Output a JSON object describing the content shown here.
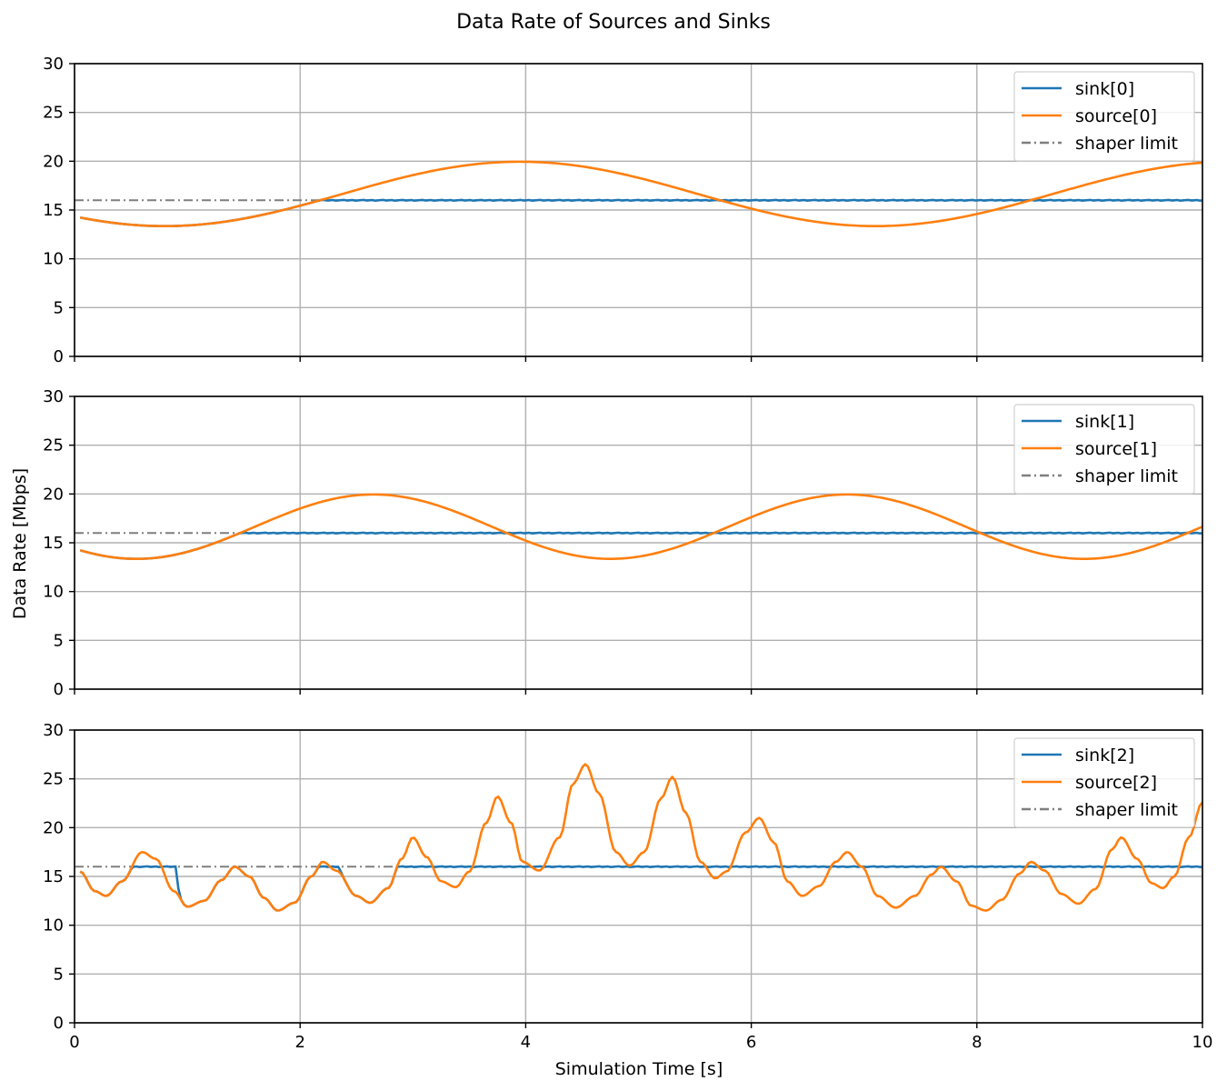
{
  "figure": {
    "title": "Data Rate of Sources and Sinks",
    "xlabel": "Simulation Time [s]",
    "ylabel": "Data Rate [Mbps]"
  },
  "colors": {
    "sink": "#1f77b4",
    "source": "#ff7f0e",
    "limit": "#7f7f7f",
    "grid": "#b0b0b0"
  },
  "chart_data": [
    {
      "type": "line",
      "xlim": [
        0,
        10
      ],
      "ylim": [
        0,
        30
      ],
      "xticks": [
        0,
        2,
        4,
        6,
        8,
        10
      ],
      "yticks": [
        0,
        5,
        10,
        15,
        20,
        25,
        30
      ],
      "grid": true,
      "legend": "top-right",
      "source_model": {
        "components": [
          {
            "a": 3.3,
            "period": 6.3,
            "phase": 0.8
          }
        ],
        "base": 16.65
      },
      "limit": 16,
      "series": [
        {
          "name": "sink[0]",
          "role": "sink"
        },
        {
          "name": "source[0]",
          "role": "source"
        },
        {
          "name": "shaper limit",
          "role": "limit"
        }
      ]
    },
    {
      "type": "line",
      "xlim": [
        0,
        10
      ],
      "ylim": [
        0,
        30
      ],
      "xticks": [
        0,
        2,
        4,
        6,
        8,
        10
      ],
      "yticks": [
        0,
        5,
        10,
        15,
        20,
        25,
        30
      ],
      "grid": true,
      "legend": "top-right",
      "source_model": {
        "components": [
          {
            "a": 3.3,
            "period": 4.2,
            "phase": 0.55
          }
        ],
        "base": 16.65
      },
      "limit": 16,
      "series": [
        {
          "name": "sink[1]",
          "role": "sink"
        },
        {
          "name": "source[1]",
          "role": "source"
        },
        {
          "name": "shaper limit",
          "role": "limit"
        }
      ]
    },
    {
      "type": "line",
      "xlim": [
        0,
        10
      ],
      "ylim": [
        0,
        30
      ],
      "xticks": [
        0,
        2,
        4,
        6,
        8,
        10
      ],
      "yticks": [
        0,
        5,
        10,
        15,
        20,
        25,
        30
      ],
      "grid": true,
      "legend": "top-right",
      "source_points": [
        [
          0.05,
          15.5
        ],
        [
          0.18,
          13.5
        ],
        [
          0.28,
          13.0
        ],
        [
          0.42,
          14.5
        ],
        [
          0.6,
          17.5
        ],
        [
          0.72,
          16.8
        ],
        [
          0.88,
          13.5
        ],
        [
          1.0,
          11.9
        ],
        [
          1.15,
          12.5
        ],
        [
          1.3,
          14.6
        ],
        [
          1.42,
          16.0
        ],
        [
          1.55,
          15.0
        ],
        [
          1.68,
          12.8
        ],
        [
          1.8,
          11.5
        ],
        [
          1.95,
          12.3
        ],
        [
          2.1,
          15.0
        ],
        [
          2.2,
          16.5
        ],
        [
          2.32,
          15.6
        ],
        [
          2.5,
          13.0
        ],
        [
          2.62,
          12.3
        ],
        [
          2.78,
          13.8
        ],
        [
          2.9,
          16.8
        ],
        [
          3.0,
          19.0
        ],
        [
          3.12,
          17.0
        ],
        [
          3.25,
          14.5
        ],
        [
          3.38,
          13.9
        ],
        [
          3.5,
          15.5
        ],
        [
          3.65,
          20.5
        ],
        [
          3.75,
          23.2
        ],
        [
          3.87,
          20.5
        ],
        [
          3.97,
          16.5
        ],
        [
          4.12,
          15.6
        ],
        [
          4.3,
          19.0
        ],
        [
          4.42,
          24.5
        ],
        [
          4.53,
          26.5
        ],
        [
          4.65,
          23.5
        ],
        [
          4.8,
          17.5
        ],
        [
          4.92,
          16.1
        ],
        [
          5.05,
          17.5
        ],
        [
          5.2,
          23.0
        ],
        [
          5.3,
          25.2
        ],
        [
          5.42,
          21.5
        ],
        [
          5.55,
          16.5
        ],
        [
          5.68,
          14.8
        ],
        [
          5.78,
          15.5
        ],
        [
          5.95,
          19.5
        ],
        [
          6.07,
          21.0
        ],
        [
          6.2,
          18.5
        ],
        [
          6.32,
          14.5
        ],
        [
          6.45,
          13.0
        ],
        [
          6.6,
          14.0
        ],
        [
          6.75,
          16.5
        ],
        [
          6.85,
          17.5
        ],
        [
          6.98,
          16.0
        ],
        [
          7.12,
          13.0
        ],
        [
          7.28,
          11.8
        ],
        [
          7.45,
          13.0
        ],
        [
          7.6,
          15.2
        ],
        [
          7.68,
          16.0
        ],
        [
          7.82,
          14.5
        ],
        [
          7.95,
          12.0
        ],
        [
          8.08,
          11.5
        ],
        [
          8.22,
          12.6
        ],
        [
          8.38,
          15.3
        ],
        [
          8.48,
          16.5
        ],
        [
          8.6,
          15.6
        ],
        [
          8.75,
          13.2
        ],
        [
          8.9,
          12.2
        ],
        [
          9.05,
          13.7
        ],
        [
          9.2,
          17.8
        ],
        [
          9.28,
          19.0
        ],
        [
          9.42,
          16.8
        ],
        [
          9.55,
          14.3
        ],
        [
          9.65,
          13.8
        ],
        [
          9.75,
          15.0
        ],
        [
          9.88,
          19.0
        ],
        [
          10.0,
          22.6
        ]
      ],
      "limit": 16,
      "series": [
        {
          "name": "sink[2]",
          "role": "sink"
        },
        {
          "name": "source[2]",
          "role": "source"
        },
        {
          "name": "shaper limit",
          "role": "limit"
        }
      ]
    }
  ]
}
